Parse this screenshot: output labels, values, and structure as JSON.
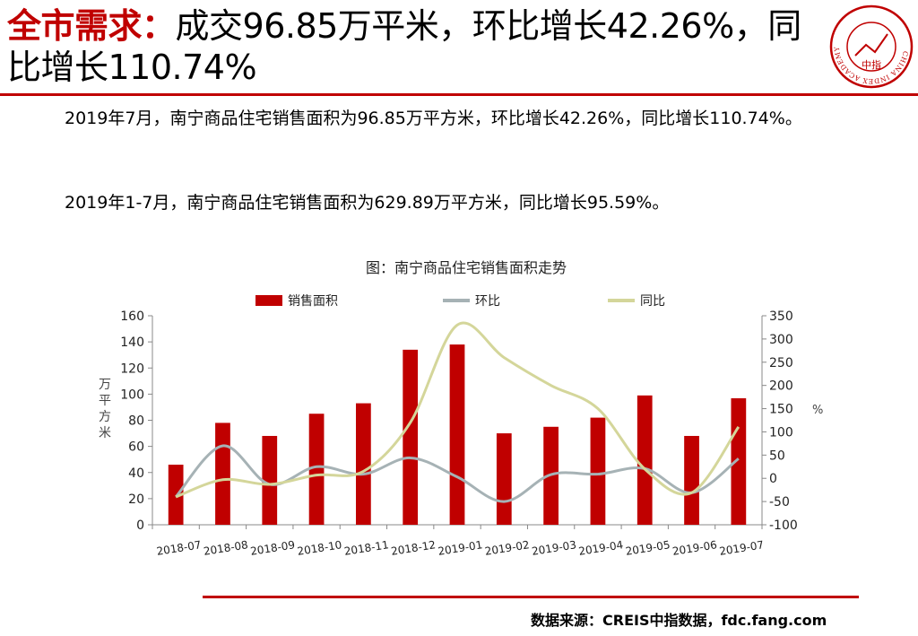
{
  "header": {
    "title_highlight": "全市需求：",
    "title_rest": "成交96.85万平米，环比增长42.26%，同比增长110.74%",
    "logo": {
      "icon": "china-index-academy-seal",
      "text_ring": "CHINA INDEX ACADEMY",
      "center_text": "中指",
      "color": "#c00000"
    }
  },
  "body": {
    "paragraph1": "2019年7月，南宁商品住宅销售面积为96.85万平方米，环比增长42.26%，同比增长110.74%。",
    "paragraph2": "2019年1-7月，南宁商品住宅销售面积为629.89万平方米，同比增长95.59%。"
  },
  "chart_data": {
    "type": "bar",
    "title": "图：南宁商品住宅销售面积走势",
    "categories": [
      "2018-07",
      "2018-08",
      "2018-09",
      "2018-10",
      "2018-11",
      "2018-12",
      "2019-01",
      "2019-02",
      "2019-03",
      "2019-04",
      "2019-05",
      "2019-06",
      "2019-07"
    ],
    "series": [
      {
        "name": "销售面积",
        "type": "bar",
        "axis": "left",
        "color": "#c00000",
        "values": [
          46,
          78,
          68,
          85,
          93,
          134,
          138,
          70,
          75,
          82,
          99,
          68,
          96.85
        ]
      },
      {
        "name": "环比",
        "type": "line",
        "axis": "right",
        "color": "#a6b2b5",
        "values": [
          -40,
          70,
          -13,
          25,
          9,
          44,
          3,
          -50,
          8,
          9,
          21,
          -31,
          42.26
        ]
      },
      {
        "name": "同比",
        "type": "line",
        "axis": "right",
        "color": "#d4d69a",
        "values": [
          -40,
          -3,
          -13,
          7,
          15,
          120,
          330,
          260,
          200,
          150,
          20,
          -31,
          110.74
        ]
      }
    ],
    "ylabel": "万平方米",
    "y2label": "%",
    "ylim": [
      0,
      160
    ],
    "y_ticks": [
      0,
      20,
      40,
      60,
      80,
      100,
      120,
      140,
      160
    ],
    "y2lim": [
      -100,
      350
    ],
    "y2_ticks": [
      -100,
      -50,
      0,
      50,
      100,
      150,
      200,
      250,
      300,
      350
    ],
    "legend_position": "top",
    "grid": false
  },
  "footer": {
    "source": "数据来源：CREIS中指数据，fdc.fang.com"
  }
}
